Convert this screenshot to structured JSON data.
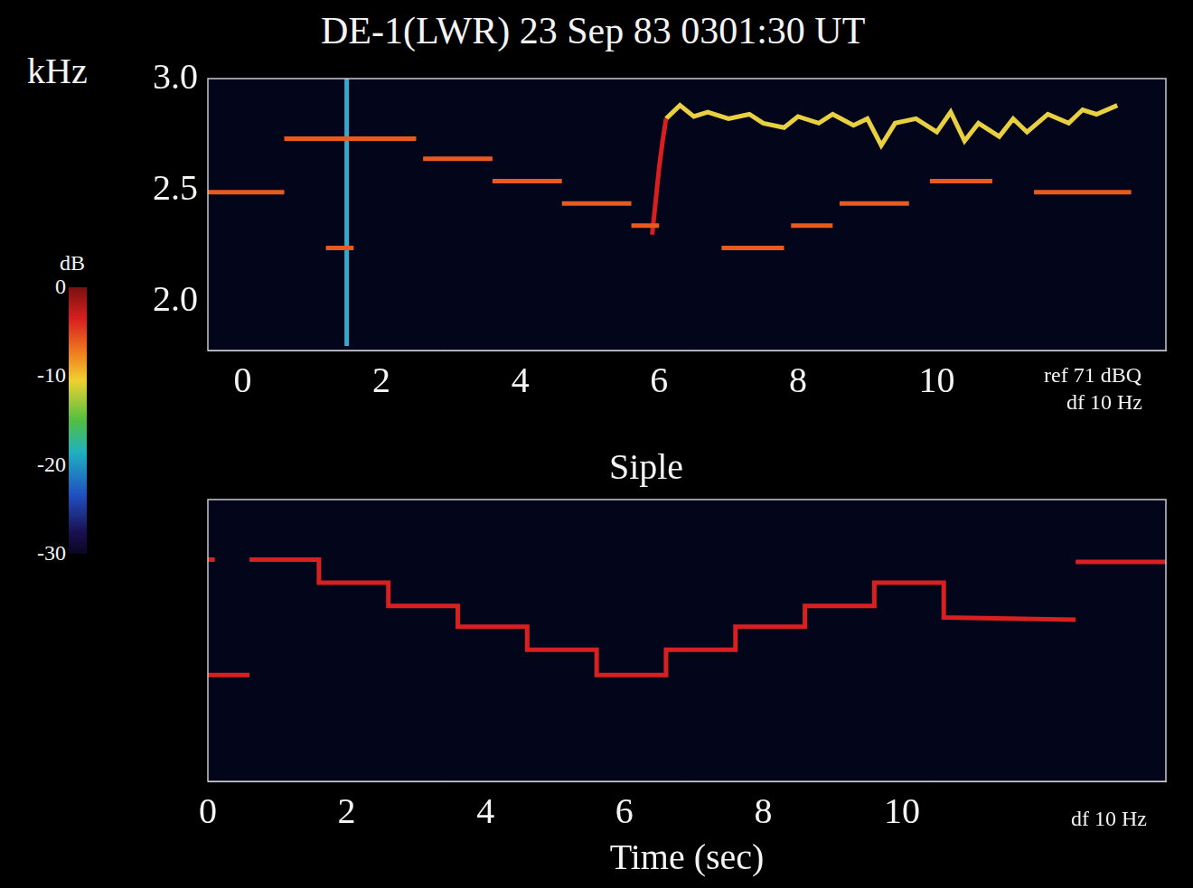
{
  "chart_data": [
    {
      "type": "line",
      "title": "DE-1(LWR) 23 Sep 83 0301:30 UT",
      "y_label": "kHz",
      "annotations": [
        "ref 71 dBQ",
        "df 10 Hz"
      ],
      "xlim": [
        -0.5,
        13.3
      ],
      "xticks": [
        0,
        2,
        4,
        6,
        8,
        10
      ],
      "ylim": [
        1.78,
        3.0
      ],
      "yticks": [
        {
          "value": 2,
          "label": "2.0"
        },
        {
          "value": 2.5,
          "label": "2.5"
        },
        {
          "value": 3,
          "label": "3.0"
        }
      ],
      "grid": false,
      "colorbar": {
        "label": "dB",
        "range": [
          -30,
          0
        ],
        "ticks": [
          0,
          -10,
          -20,
          -30
        ]
      },
      "series": [
        {
          "color": "#e85a1e",
          "x": [
            -0.5,
            0.6,
            0.6,
            0.6,
            2.5,
            2.5,
            1.2,
            1.6,
            1.6,
            2.6,
            3.6,
            3.6,
            3.6,
            4.6,
            4.6,
            4.6,
            5.6,
            5.6,
            5.6,
            6.0,
            6.0,
            6.9,
            7.8,
            7.8,
            7.9,
            8.5,
            8.5,
            8.6,
            9.6,
            9.6,
            9.9,
            10.8,
            10.8,
            11.4,
            12.8
          ],
          "values": [
            2.49,
            2.49,
            null,
            2.73,
            2.73,
            null,
            2.24,
            2.24,
            null,
            2.64,
            2.64,
            null,
            2.54,
            2.54,
            null,
            2.44,
            2.44,
            null,
            2.34,
            2.34,
            null,
            2.24,
            2.24,
            null,
            2.34,
            2.34,
            null,
            2.44,
            2.44,
            null,
            2.54,
            2.54,
            null,
            2.49,
            2.49
          ]
        },
        {
          "color": "#d81e1e",
          "x": [
            5.9,
            5.95,
            6.0,
            6.05,
            6.1
          ],
          "values": [
            2.3,
            2.45,
            2.6,
            2.72,
            2.82
          ]
        },
        {
          "color": "#e8d040",
          "x": [
            6.1,
            6.3,
            6.5,
            6.7,
            7.0,
            7.3,
            7.5,
            7.8,
            8.0,
            8.3,
            8.5,
            8.8,
            9.0,
            9.2,
            9.4,
            9.7,
            10.0,
            10.2,
            10.4,
            10.6,
            10.9,
            11.1,
            11.3,
            11.6,
            11.9,
            12.1,
            12.3,
            12.6
          ],
          "values": [
            2.82,
            2.88,
            2.83,
            2.85,
            2.82,
            2.84,
            2.8,
            2.78,
            2.83,
            2.8,
            2.84,
            2.79,
            2.82,
            2.7,
            2.8,
            2.82,
            2.76,
            2.85,
            2.72,
            2.8,
            2.74,
            2.82,
            2.76,
            2.84,
            2.8,
            2.86,
            2.84,
            2.88
          ]
        },
        {
          "color": "#3aa8c8",
          "x": [
            1.5,
            1.5
          ],
          "values": [
            1.8,
            3.0
          ]
        }
      ]
    },
    {
      "type": "line",
      "title": "Siple",
      "x_label": "Time (sec)",
      "annotations": [
        "df 10 Hz"
      ],
      "xlim": [
        0,
        13.8
      ],
      "xticks": [
        0,
        2,
        4,
        6,
        8,
        10
      ],
      "ylim": [
        1.78,
        3.0
      ],
      "tick_labels": "x",
      "grid": false,
      "series": [
        {
          "color": "#d82020",
          "x": [
            0.6,
            1.6,
            1.6,
            2.6,
            2.6,
            3.6,
            3.6,
            4.6,
            4.6,
            5.6,
            5.6,
            6.6,
            6.6,
            7.6,
            7.6,
            8.6,
            8.6,
            9.6,
            9.6,
            10.6,
            10.6,
            12.5
          ],
          "values": [
            2.74,
            2.74,
            2.64,
            2.64,
            2.54,
            2.54,
            2.45,
            2.45,
            2.35,
            2.35,
            2.24,
            2.24,
            2.35,
            2.35,
            2.45,
            2.45,
            2.54,
            2.54,
            2.64,
            2.64,
            2.49,
            2.48
          ]
        },
        {
          "color": "#d82020",
          "x": [
            12.5,
            13.8
          ],
          "values": [
            2.73,
            2.73
          ]
        },
        {
          "color": "#d82020",
          "x": [
            0,
            0.6
          ],
          "values": [
            2.24,
            2.24
          ]
        },
        {
          "color": "#d82020",
          "x": [
            0,
            0.1
          ],
          "values": [
            2.74,
            2.74
          ]
        }
      ]
    }
  ]
}
